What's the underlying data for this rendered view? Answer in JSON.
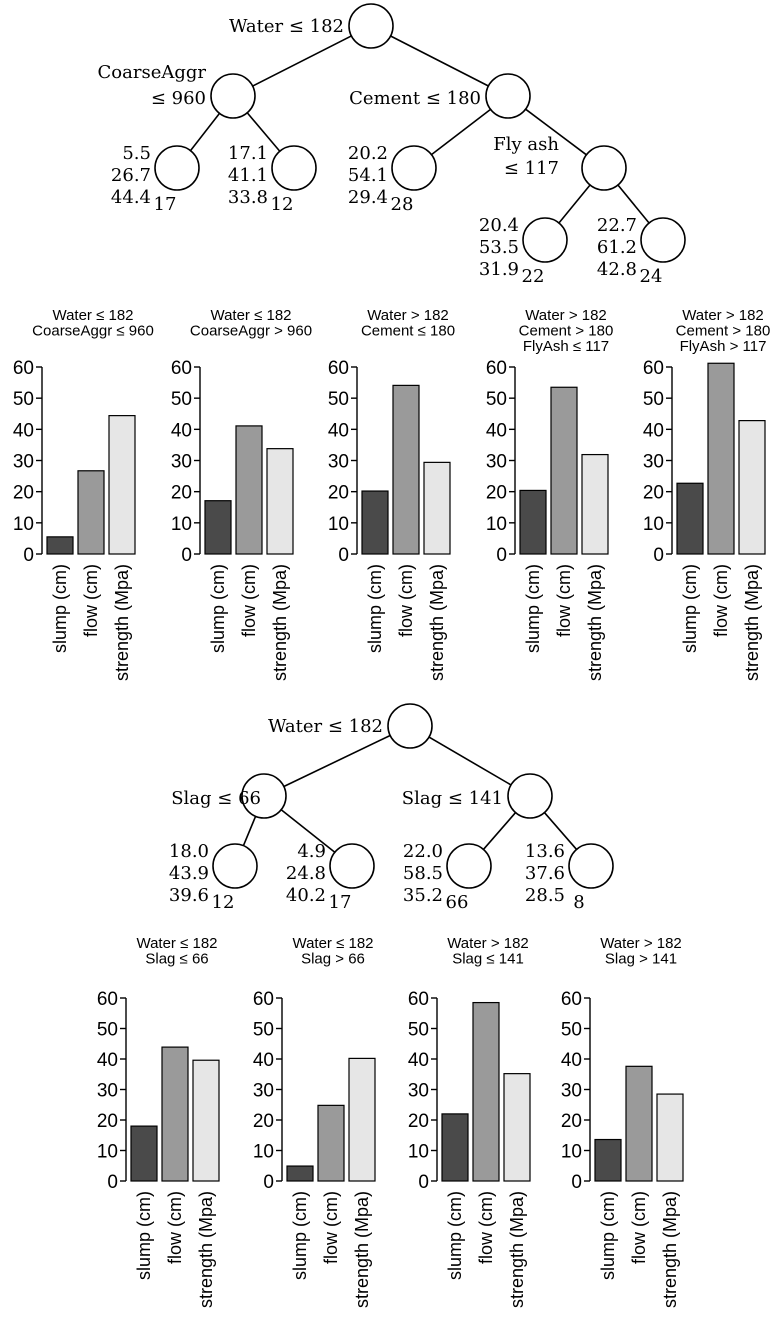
{
  "trees": [
    {
      "nodes": [
        {
          "id": "root",
          "label": [
            "Water ≤ 182"
          ]
        },
        {
          "id": "l",
          "label": [
            "CoarseAggr",
            "≤ 960"
          ]
        },
        {
          "id": "r",
          "label": [
            "Cement ≤ 180"
          ]
        },
        {
          "id": "rr",
          "label": [
            "Fly ash",
            "≤ 117"
          ]
        },
        {
          "id": "ll_leaf",
          "stats": [
            "5.5",
            "26.7",
            "44.4"
          ],
          "count": "17"
        },
        {
          "id": "lr_leaf",
          "stats": [
            "17.1",
            "41.1",
            "33.8"
          ],
          "count": "12"
        },
        {
          "id": "rl_leaf",
          "stats": [
            "20.2",
            "54.1",
            "29.4"
          ],
          "count": "28"
        },
        {
          "id": "rrl_leaf",
          "stats": [
            "20.4",
            "53.5",
            "31.9"
          ],
          "count": "22"
        },
        {
          "id": "rrr_leaf",
          "stats": [
            "22.7",
            "61.2",
            "42.8"
          ],
          "count": "24"
        }
      ],
      "edges": [
        [
          "root",
          "l"
        ],
        [
          "root",
          "r"
        ],
        [
          "l",
          "ll_leaf"
        ],
        [
          "l",
          "lr_leaf"
        ],
        [
          "r",
          "rl_leaf"
        ],
        [
          "r",
          "rr"
        ],
        [
          "rr",
          "rrl_leaf"
        ],
        [
          "rr",
          "rrr_leaf"
        ]
      ]
    },
    {
      "nodes": [
        {
          "id": "root",
          "label": [
            "Water ≤ 182"
          ]
        },
        {
          "id": "l",
          "label": [
            "Slag ≤ 66"
          ]
        },
        {
          "id": "r",
          "label": [
            "Slag ≤ 141"
          ]
        },
        {
          "id": "ll_leaf",
          "stats": [
            "18.0",
            "43.9",
            "39.6"
          ],
          "count": "12"
        },
        {
          "id": "lr_leaf",
          "stats": [
            "4.9",
            "24.8",
            "40.2"
          ],
          "count": "17"
        },
        {
          "id": "rl_leaf",
          "stats": [
            "22.0",
            "58.5",
            "35.2"
          ],
          "count": "66"
        },
        {
          "id": "rr_leaf",
          "stats": [
            "13.6",
            "37.6",
            "28.5"
          ],
          "count": "8"
        }
      ],
      "edges": [
        [
          "root",
          "l"
        ],
        [
          "root",
          "r"
        ],
        [
          "l",
          "ll_leaf"
        ],
        [
          "l",
          "lr_leaf"
        ],
        [
          "r",
          "rl_leaf"
        ],
        [
          "r",
          "rr_leaf"
        ]
      ]
    }
  ],
  "colors": {
    "slump": "#4a4a4a",
    "flow": "#9a9a9a",
    "strength": "#e6e6e6",
    "stroke": "#000000"
  },
  "chart_data": [
    {
      "type": "bar",
      "title": [
        "Water ≤ 182",
        "CoarseAggr ≤ 960"
      ],
      "categories": [
        "slump (cm)",
        "flow (cm)",
        "strength (Mpa)"
      ],
      "values": [
        5.5,
        26.7,
        44.4
      ],
      "ylim": [
        0,
        60
      ],
      "yticks": [
        0,
        10,
        20,
        30,
        40,
        50,
        60
      ]
    },
    {
      "type": "bar",
      "title": [
        "Water ≤ 182",
        "CoarseAggr > 960"
      ],
      "categories": [
        "slump (cm)",
        "flow (cm)",
        "strength (Mpa)"
      ],
      "values": [
        17.1,
        41.1,
        33.8
      ],
      "ylim": [
        0,
        60
      ],
      "yticks": [
        0,
        10,
        20,
        30,
        40,
        50,
        60
      ]
    },
    {
      "type": "bar",
      "title": [
        "Water > 182",
        "Cement ≤ 180"
      ],
      "categories": [
        "slump (cm)",
        "flow (cm)",
        "strength (Mpa)"
      ],
      "values": [
        20.2,
        54.1,
        29.4
      ],
      "ylim": [
        0,
        60
      ],
      "yticks": [
        0,
        10,
        20,
        30,
        40,
        50,
        60
      ]
    },
    {
      "type": "bar",
      "title": [
        "Water > 182",
        "Cement > 180",
        "FlyAsh ≤ 117"
      ],
      "categories": [
        "slump (cm)",
        "flow (cm)",
        "strength (Mpa)"
      ],
      "values": [
        20.4,
        53.5,
        31.9
      ],
      "ylim": [
        0,
        60
      ],
      "yticks": [
        0,
        10,
        20,
        30,
        40,
        50,
        60
      ]
    },
    {
      "type": "bar",
      "title": [
        "Water > 182",
        "Cement > 180",
        "FlyAsh > 117"
      ],
      "categories": [
        "slump (cm)",
        "flow (cm)",
        "strength (Mpa)"
      ],
      "values": [
        22.7,
        61.2,
        42.8
      ],
      "ylim": [
        0,
        60
      ],
      "yticks": [
        0,
        10,
        20,
        30,
        40,
        50,
        60
      ]
    },
    {
      "type": "bar",
      "title": [
        "Water ≤ 182",
        "Slag ≤ 66"
      ],
      "categories": [
        "slump (cm)",
        "flow (cm)",
        "strength (Mpa)"
      ],
      "values": [
        18.0,
        43.9,
        39.6
      ],
      "ylim": [
        0,
        60
      ],
      "yticks": [
        0,
        10,
        20,
        30,
        40,
        50,
        60
      ]
    },
    {
      "type": "bar",
      "title": [
        "Water ≤ 182",
        "Slag > 66"
      ],
      "categories": [
        "slump (cm)",
        "flow (cm)",
        "strength (Mpa)"
      ],
      "values": [
        4.9,
        24.8,
        40.2
      ],
      "ylim": [
        0,
        60
      ],
      "yticks": [
        0,
        10,
        20,
        30,
        40,
        50,
        60
      ]
    },
    {
      "type": "bar",
      "title": [
        "Water > 182",
        "Slag ≤ 141"
      ],
      "categories": [
        "slump (cm)",
        "flow (cm)",
        "strength (Mpa)"
      ],
      "values": [
        22.0,
        58.5,
        35.2
      ],
      "ylim": [
        0,
        60
      ],
      "yticks": [
        0,
        10,
        20,
        30,
        40,
        50,
        60
      ]
    },
    {
      "type": "bar",
      "title": [
        "Water > 182",
        "Slag > 141"
      ],
      "categories": [
        "slump (cm)",
        "flow (cm)",
        "strength (Mpa)"
      ],
      "values": [
        13.6,
        37.6,
        28.5
      ],
      "ylim": [
        0,
        60
      ],
      "yticks": [
        0,
        10,
        20,
        30,
        40,
        50,
        60
      ]
    }
  ]
}
